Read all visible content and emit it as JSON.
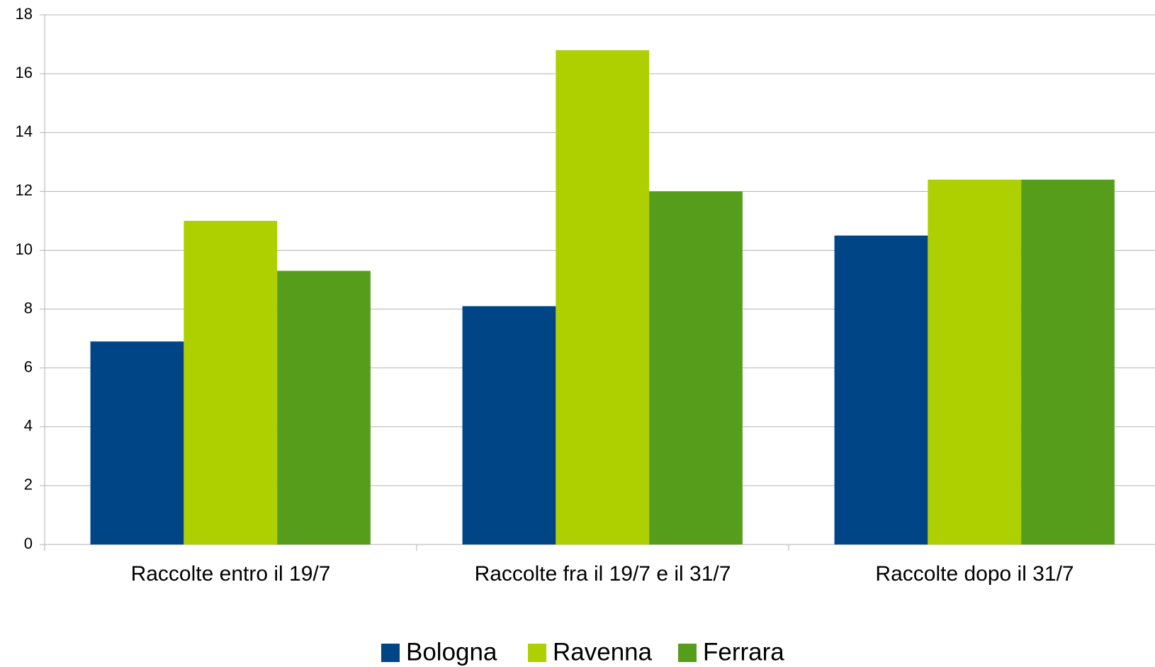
{
  "chart_data": {
    "type": "bar",
    "categories": [
      "Raccolte entro il 19/7",
      "Raccolte fra il 19/7 e il 31/7",
      "Raccolte dopo il 31/7"
    ],
    "series": [
      {
        "name": "Bologna",
        "color": "#004586",
        "values": [
          6.9,
          8.1,
          10.5
        ]
      },
      {
        "name": "Ravenna",
        "color": "#aecf00",
        "values": [
          11,
          16.8,
          12.4
        ]
      },
      {
        "name": "Ferrara",
        "color": "#579d1c",
        "values": [
          9.3,
          12,
          12.4
        ]
      }
    ],
    "ylim": [
      0,
      18
    ],
    "yticks": [
      0,
      2,
      4,
      6,
      8,
      10,
      12,
      14,
      16,
      18
    ],
    "grid": true,
    "legend": "bottom"
  }
}
